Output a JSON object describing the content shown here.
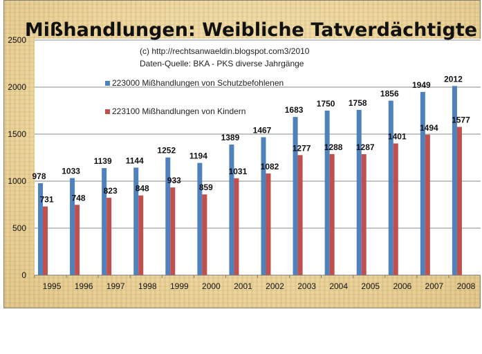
{
  "chart_data": {
    "type": "bar",
    "title": "Mißhandlungen: Weibliche Tatverdächtigte",
    "annotations": [
      "(c) http://rechtsanwaeldin.blogspot.com3/2010",
      "Daten-Quelle: BKA - PKS diverse Jahrgänge"
    ],
    "categories": [
      "1995",
      "1996",
      "1997",
      "1998",
      "1999",
      "2000",
      "2001",
      "2002",
      "2003",
      "2004",
      "2005",
      "2006",
      "2007",
      "2008"
    ],
    "series": [
      {
        "name": "223000 Mißhandlungen von Schutzbefohlenen",
        "color": "#4f81bd",
        "values": [
          978,
          1033,
          1139,
          1144,
          1252,
          1194,
          1389,
          1467,
          1683,
          1750,
          1758,
          1856,
          1949,
          2012
        ]
      },
      {
        "name": "223100 Mißhandlungen von Kindern",
        "color": "#c0504d",
        "values": [
          731,
          748,
          823,
          848,
          933,
          859,
          1031,
          1082,
          1277,
          1288,
          1287,
          1401,
          1494,
          1577
        ]
      }
    ],
    "ylim": [
      0,
      2500
    ],
    "yticks": [
      0,
      500,
      1000,
      1500,
      2000,
      2500
    ],
    "grid": true,
    "legend_position": "top-left inside plot",
    "data_labels": true
  }
}
